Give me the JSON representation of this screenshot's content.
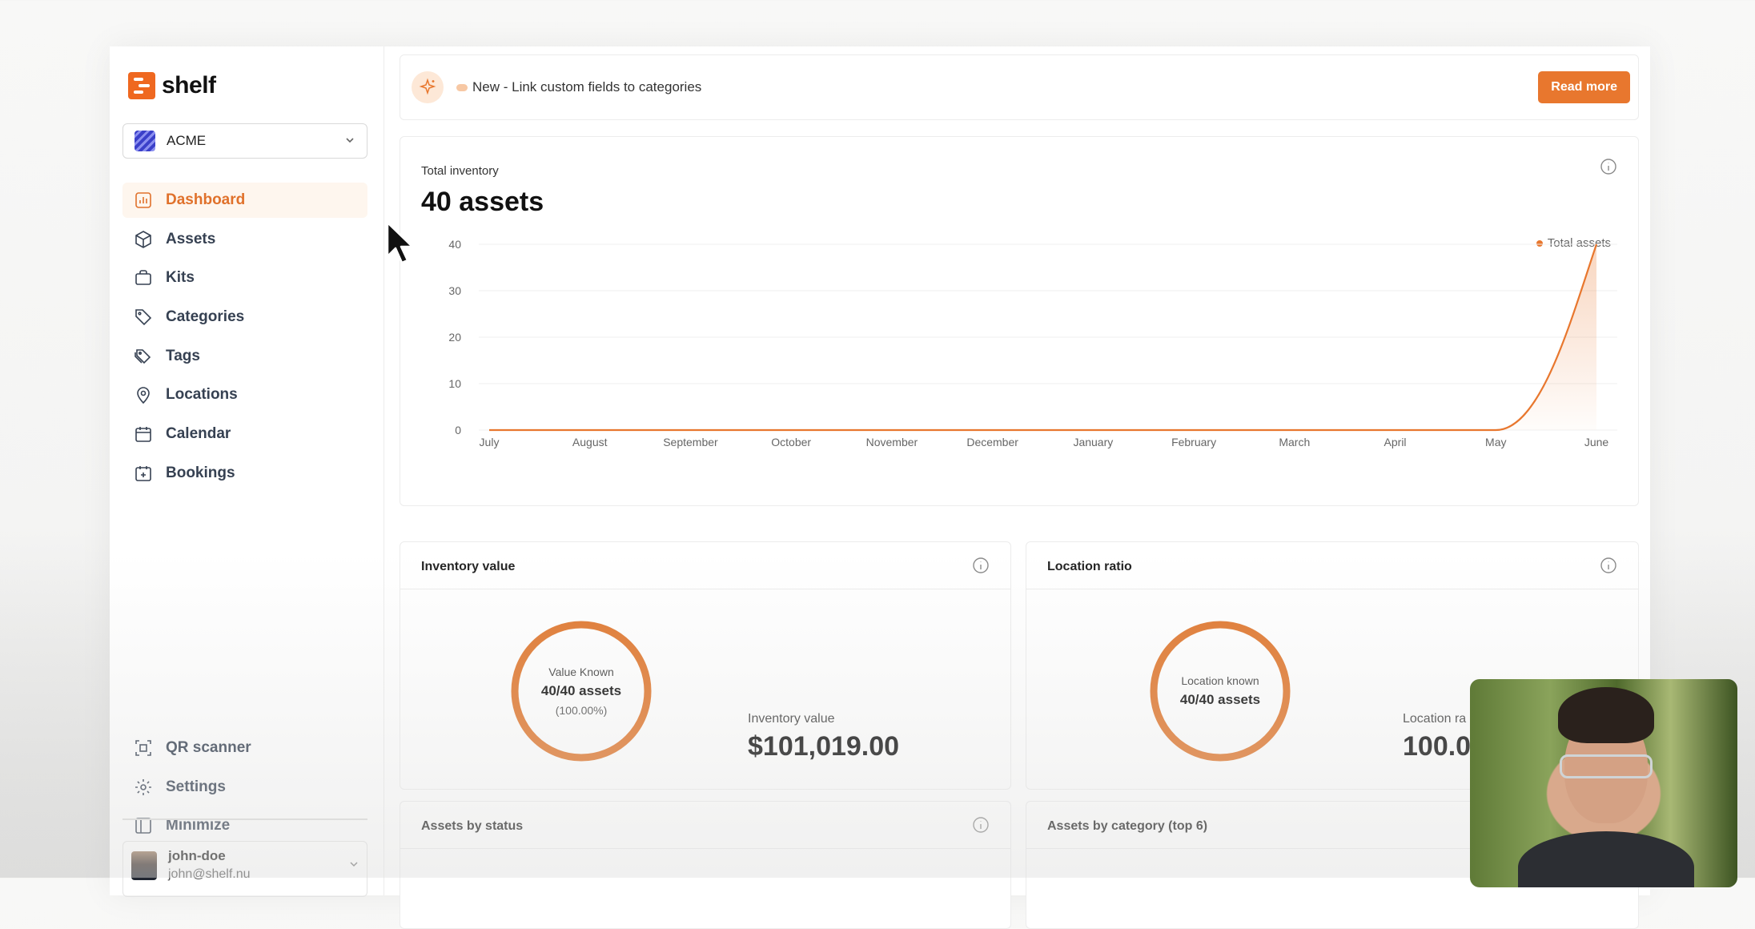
{
  "brand": {
    "name": "shelf"
  },
  "org": {
    "name": "ACME"
  },
  "nav": {
    "items": [
      {
        "label": "Dashboard",
        "icon": "chart-icon"
      },
      {
        "label": "Assets",
        "icon": "box-icon"
      },
      {
        "label": "Kits",
        "icon": "briefcase-icon"
      },
      {
        "label": "Categories",
        "icon": "tag-icon"
      },
      {
        "label": "Tags",
        "icon": "tags-icon"
      },
      {
        "label": "Locations",
        "icon": "map-pin-icon"
      },
      {
        "label": "Calendar",
        "icon": "calendar-icon"
      },
      {
        "label": "Bookings",
        "icon": "calendar-plus-icon"
      }
    ],
    "bottom": [
      {
        "label": "QR scanner",
        "icon": "qr-scan-icon"
      },
      {
        "label": "Settings",
        "icon": "gear-icon"
      },
      {
        "label": "Minimize",
        "icon": "sidebar-icon"
      }
    ]
  },
  "user": {
    "name": "john-doe",
    "email": "john@shelf.nu"
  },
  "banner": {
    "text": "New - Link custom fields to categories",
    "button": "Read more"
  },
  "total_inventory": {
    "label": "Total inventory",
    "value": "40 assets",
    "legend": "Total assets"
  },
  "inventory_value": {
    "title": "Inventory value",
    "donut_l1": "Value Known",
    "donut_l2": "40/40 assets",
    "donut_l3": "(100.00%)",
    "stat_label": "Inventory value",
    "stat_value": "$101,019.00"
  },
  "location_ratio": {
    "title": "Location ratio",
    "donut_l1": "Location known",
    "donut_l2": "40/40 assets",
    "stat_label": "Location ra",
    "stat_value": "100.0"
  },
  "assets_by_status": {
    "title": "Assets by status"
  },
  "assets_by_category": {
    "title": "Assets by category (top 6)"
  },
  "colors": {
    "accent": "#e8772e",
    "active_bg": "#fef6ee"
  },
  "chart_data": {
    "type": "area",
    "categories": [
      "July",
      "August",
      "September",
      "October",
      "November",
      "December",
      "January",
      "February",
      "March",
      "April",
      "May",
      "June"
    ],
    "series": [
      {
        "name": "Total assets",
        "values": [
          0,
          0,
          0,
          0,
          0,
          0,
          0,
          0,
          0,
          0,
          0,
          40
        ]
      }
    ],
    "y_ticks": [
      0,
      10,
      20,
      30,
      40
    ],
    "ylim": [
      0,
      40
    ],
    "grid": true,
    "legend": "top-right"
  }
}
